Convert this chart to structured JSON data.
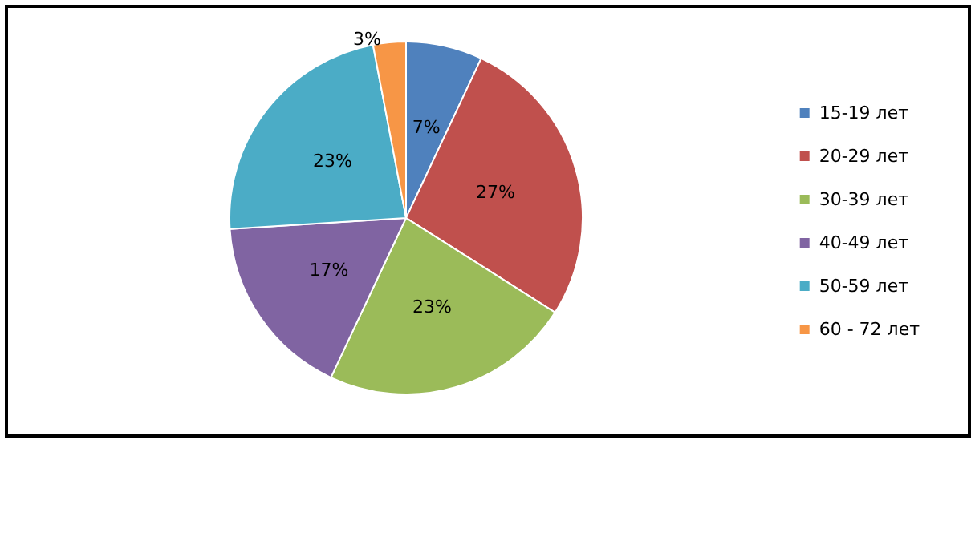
{
  "chart_data": {
    "type": "pie",
    "categories": [
      "15-19 лет",
      "20-29 лет",
      "30-39 лет",
      "40-49 лет",
      "50-59 лет",
      "60 - 72 лет"
    ],
    "values": [
      7,
      27,
      23,
      17,
      23,
      3
    ],
    "colors": [
      "#4f81bd",
      "#c0504d",
      "#9bbb59",
      "#8064a2",
      "#4bacc6",
      "#f79646"
    ],
    "value_labels": [
      "7%",
      "27%",
      "23%",
      "17%",
      "23%",
      "3%"
    ],
    "legend": "right"
  }
}
